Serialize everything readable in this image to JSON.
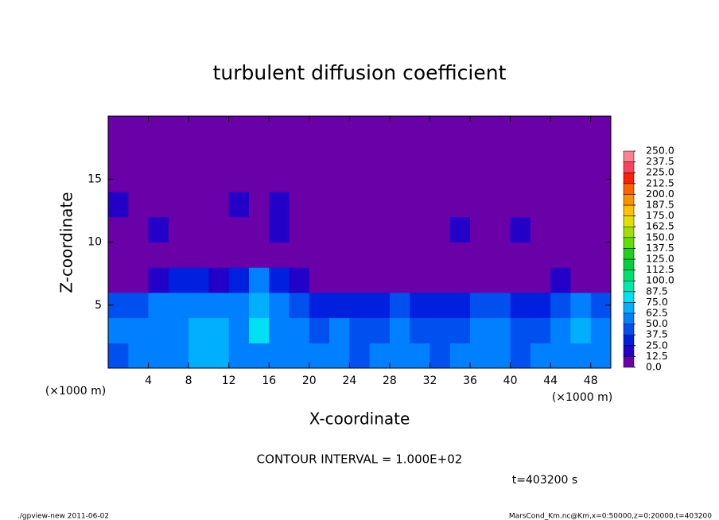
{
  "chart_data": {
    "type": "heatmap",
    "title": "turbulent diffusion coefficient",
    "x_label": "X-coordinate",
    "y_label": "Z-coordinate",
    "x_unit_left": "(×1000 m)",
    "x_unit_right": "(×1000 m)",
    "annotation": "CONTOUR INTERVAL = 1.000E+02",
    "time_label": "t=403200 s",
    "footer_left": "./gpview-new  2011-06-02",
    "footer_right": "MarsCond_Km.nc@Km,x=0:50000,z=0:20000,t=403200",
    "xlim": [
      0,
      50
    ],
    "ylim": [
      0,
      20
    ],
    "xticks": [
      4,
      8,
      12,
      16,
      20,
      24,
      28,
      32,
      36,
      40,
      44,
      48
    ],
    "yticks": [
      5,
      10,
      15
    ],
    "x_edges": [
      0,
      2,
      4,
      6,
      8,
      10,
      12,
      14,
      16,
      18,
      20,
      22,
      24,
      26,
      28,
      30,
      32,
      34,
      36,
      38,
      40,
      42,
      44,
      46,
      48,
      50
    ],
    "z_edges": [
      0,
      2,
      4,
      6,
      8,
      10,
      12,
      14,
      16,
      18,
      20
    ],
    "values": [
      [
        45,
        50,
        55,
        60,
        65,
        70,
        55,
        50,
        60,
        55,
        50,
        50,
        45,
        50,
        55,
        50,
        45,
        50,
        55,
        50,
        45,
        50,
        55,
        60,
        50
      ],
      [
        50,
        55,
        60,
        55,
        65,
        70,
        60,
        80,
        60,
        50,
        45,
        50,
        40,
        45,
        50,
        45,
        40,
        45,
        50,
        55,
        45,
        45,
        50,
        70,
        50
      ],
      [
        40,
        45,
        50,
        55,
        50,
        55,
        60,
        70,
        55,
        40,
        35,
        35,
        30,
        35,
        40,
        35,
        30,
        35,
        40,
        45,
        35,
        35,
        40,
        55,
        45
      ],
      [
        5,
        5,
        15,
        30,
        25,
        20,
        35,
        50,
        35,
        15,
        5,
        5,
        5,
        5,
        5,
        5,
        5,
        5,
        5,
        10,
        5,
        5,
        20,
        10,
        5
      ],
      [
        5,
        10,
        5,
        5,
        5,
        5,
        5,
        10,
        5,
        5,
        5,
        5,
        5,
        5,
        5,
        5,
        5,
        5,
        5,
        5,
        5,
        10,
        5,
        5,
        5
      ],
      [
        10,
        5,
        14,
        5,
        5,
        10,
        5,
        5,
        14,
        5,
        10,
        5,
        5,
        5,
        5,
        5,
        10,
        20,
        5,
        5,
        14,
        5,
        10,
        5,
        5
      ],
      [
        14,
        10,
        5,
        5,
        5,
        10,
        15,
        5,
        14,
        5,
        5,
        5,
        5,
        5,
        5,
        5,
        5,
        5,
        5,
        5,
        5,
        5,
        5,
        5,
        5
      ],
      [
        0,
        0,
        0,
        0,
        0,
        0,
        0,
        0,
        0,
        0,
        5,
        5,
        5,
        0,
        0,
        0,
        0,
        0,
        0,
        0,
        0,
        0,
        0,
        0,
        0
      ],
      [
        0,
        0,
        0,
        0,
        0,
        0,
        0,
        0,
        0,
        0,
        0,
        0,
        0,
        0,
        0,
        0,
        0,
        0,
        0,
        0,
        0,
        0,
        0,
        0,
        0
      ],
      [
        0,
        0,
        0,
        0,
        0,
        0,
        0,
        0,
        0,
        0,
        0,
        0,
        0,
        0,
        0,
        0,
        0,
        0,
        0,
        0,
        0,
        0,
        0,
        0,
        0
      ]
    ],
    "colorbar_levels": [
      {
        "value": 0,
        "label": "0.0"
      },
      12.5,
      {
        "value": 25,
        "label": "25.0"
      },
      37.5,
      {
        "value": 50,
        "label": "50.0"
      },
      62.5,
      {
        "value": 75,
        "label": "75.0"
      },
      87.5,
      {
        "value": 100,
        "label": "100.0"
      },
      112.5,
      {
        "value": 125,
        "label": "125.0"
      },
      137.5,
      {
        "value": 150,
        "label": "150.0"
      },
      162.5,
      {
        "value": 175,
        "label": "175.0"
      },
      187.5,
      {
        "value": 200,
        "label": "200.0"
      },
      212.5,
      {
        "value": 225,
        "label": "225.0"
      },
      237.5,
      {
        "value": 250,
        "label": "250.0"
      }
    ],
    "colors": [
      "#6a00a8",
      "#2200c8",
      "#0020e0",
      "#0050f0",
      "#0080ff",
      "#00b0ff",
      "#00e0f0",
      "#00e8b0",
      "#00e070",
      "#00d040",
      "#20d020",
      "#60e000",
      "#a0e000",
      "#e0e000",
      "#ffc000",
      "#ff9000",
      "#ff6000",
      "#ff2000",
      "#ff4060",
      "#ff8090"
    ]
  }
}
